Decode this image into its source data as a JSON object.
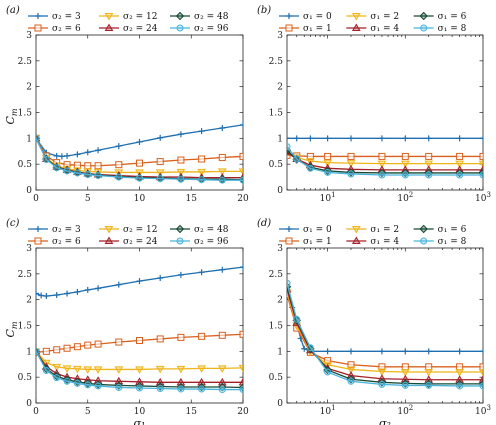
{
  "chart_data": [
    {
      "panel": "(a)",
      "type": "line",
      "xscale": "linear",
      "xlim": [
        0,
        20
      ],
      "ylim": [
        0,
        3
      ],
      "xticks": [
        "0",
        "5",
        "10",
        "15",
        "20"
      ],
      "yticks": [
        "0",
        "0.5",
        "1",
        "1.5",
        "2",
        "2.5",
        "3"
      ],
      "xlabel": "",
      "ylabel": "C_m",
      "legend_position": "top",
      "series": [
        {
          "name": "σ₂ = 3",
          "color": "#1f6fb0",
          "marker": "plus",
          "x": [
            0,
            1,
            2,
            2.5,
            3,
            4,
            5,
            6,
            8,
            10,
            12,
            14,
            16,
            18,
            20
          ],
          "y": [
            1.0,
            0.72,
            0.66,
            0.65,
            0.66,
            0.69,
            0.73,
            0.77,
            0.85,
            0.93,
            1.01,
            1.08,
            1.14,
            1.2,
            1.26
          ]
        },
        {
          "name": "σ₂ = 6",
          "color": "#d9601c",
          "marker": "square",
          "x": [
            0,
            1,
            2,
            3,
            4,
            5,
            6,
            8,
            10,
            12,
            14,
            16,
            18,
            20
          ],
          "y": [
            1.0,
            0.66,
            0.53,
            0.49,
            0.48,
            0.47,
            0.47,
            0.49,
            0.52,
            0.55,
            0.58,
            0.6,
            0.63,
            0.65
          ]
        },
        {
          "name": "σ₂ = 12",
          "color": "#efb418",
          "marker": "triangle-down",
          "x": [
            0,
            1,
            2,
            3,
            4,
            5,
            6,
            8,
            10,
            12,
            14,
            16,
            18,
            20
          ],
          "y": [
            1.0,
            0.62,
            0.47,
            0.41,
            0.38,
            0.36,
            0.35,
            0.34,
            0.34,
            0.34,
            0.35,
            0.35,
            0.36,
            0.36
          ]
        },
        {
          "name": "σ₂ = 24",
          "color": "#a51e28",
          "marker": "triangle-up",
          "x": [
            0,
            1,
            2,
            3,
            4,
            5,
            6,
            8,
            10,
            12,
            14,
            16,
            18,
            20
          ],
          "y": [
            1.0,
            0.6,
            0.45,
            0.39,
            0.35,
            0.32,
            0.3,
            0.28,
            0.26,
            0.25,
            0.25,
            0.24,
            0.24,
            0.24
          ]
        },
        {
          "name": "σ₂ = 48",
          "color": "#174a34",
          "marker": "diamond",
          "x": [
            0,
            1,
            2,
            3,
            4,
            5,
            6,
            8,
            10,
            12,
            14,
            16,
            18,
            20
          ],
          "y": [
            1.0,
            0.6,
            0.44,
            0.38,
            0.34,
            0.31,
            0.29,
            0.26,
            0.24,
            0.23,
            0.22,
            0.21,
            0.21,
            0.2
          ]
        },
        {
          "name": "σ₂ = 96",
          "color": "#48b3dc",
          "marker": "circle",
          "x": [
            0,
            1,
            2,
            3,
            4,
            5,
            6,
            8,
            10,
            12,
            14,
            16,
            18,
            20
          ],
          "y": [
            1.0,
            0.59,
            0.43,
            0.37,
            0.33,
            0.3,
            0.28,
            0.25,
            0.23,
            0.22,
            0.21,
            0.2,
            0.19,
            0.19
          ]
        }
      ]
    },
    {
      "panel": "(b)",
      "type": "line",
      "xscale": "log",
      "xlim": [
        3,
        1000
      ],
      "ylim": [
        0,
        3
      ],
      "xticks": [
        "10^1",
        "10^2",
        "10^3"
      ],
      "yticks": [
        "0",
        "0.5",
        "1",
        "1.5",
        "2",
        "2.5",
        "3"
      ],
      "xlabel": "",
      "ylabel": "",
      "legend_position": "top",
      "series": [
        {
          "name": "σ₁ = 0",
          "color": "#1f6fb0",
          "marker": "plus",
          "x": [
            3,
            4,
            6,
            10,
            20,
            50,
            100,
            200,
            500,
            1000
          ],
          "y": [
            1.0,
            1.0,
            1.0,
            1.0,
            1.0,
            1.0,
            1.0,
            1.0,
            1.0,
            1.0
          ]
        },
        {
          "name": "σ₁ = 1",
          "color": "#d9601c",
          "marker": "square",
          "x": [
            3,
            4,
            6,
            10,
            20,
            50,
            100,
            200,
            500,
            1000
          ],
          "y": [
            0.67,
            0.66,
            0.65,
            0.65,
            0.65,
            0.65,
            0.65,
            0.65,
            0.65,
            0.65
          ]
        },
        {
          "name": "σ₁ = 2",
          "color": "#efb418",
          "marker": "triangle-down",
          "x": [
            3,
            4,
            6,
            10,
            20,
            50,
            100,
            200,
            500,
            1000
          ],
          "y": [
            0.7,
            0.63,
            0.56,
            0.53,
            0.52,
            0.51,
            0.51,
            0.51,
            0.51,
            0.51
          ]
        },
        {
          "name": "σ₁ = 4",
          "color": "#a51e28",
          "marker": "triangle-up",
          "x": [
            3,
            4,
            6,
            10,
            20,
            50,
            100,
            200,
            500,
            1000
          ],
          "y": [
            0.73,
            0.6,
            0.48,
            0.42,
            0.4,
            0.39,
            0.39,
            0.39,
            0.39,
            0.39
          ]
        },
        {
          "name": "σ₁ = 6",
          "color": "#174a34",
          "marker": "diamond",
          "x": [
            3,
            4,
            6,
            10,
            20,
            50,
            100,
            200,
            500,
            1000
          ],
          "y": [
            0.77,
            0.59,
            0.44,
            0.37,
            0.34,
            0.33,
            0.33,
            0.33,
            0.33,
            0.33
          ]
        },
        {
          "name": "σ₁ = 8",
          "color": "#48b3dc",
          "marker": "circle",
          "x": [
            3,
            4,
            6,
            10,
            20,
            50,
            100,
            200,
            500,
            1000
          ],
          "y": [
            0.84,
            0.6,
            0.42,
            0.34,
            0.31,
            0.29,
            0.29,
            0.29,
            0.29,
            0.29
          ]
        }
      ]
    },
    {
      "panel": "(c)",
      "type": "line",
      "xscale": "linear",
      "xlim": [
        0,
        20
      ],
      "ylim": [
        0,
        3
      ],
      "xticks": [
        "0",
        "5",
        "10",
        "15",
        "20"
      ],
      "yticks": [
        "0",
        "0.5",
        "1",
        "1.5",
        "2",
        "2.5",
        "3"
      ],
      "xlabel": "σ₁",
      "ylabel": "C_m",
      "legend_position": "top",
      "series": [
        {
          "name": "σ₂ = 3",
          "color": "#1f6fb0",
          "marker": "plus",
          "x": [
            0,
            0.5,
            1,
            2,
            3,
            4,
            5,
            6,
            8,
            10,
            12,
            14,
            16,
            18,
            20
          ],
          "y": [
            2.12,
            2.08,
            2.07,
            2.09,
            2.12,
            2.15,
            2.19,
            2.22,
            2.29,
            2.36,
            2.42,
            2.48,
            2.53,
            2.58,
            2.63
          ]
        },
        {
          "name": "σ₂ = 6",
          "color": "#d9601c",
          "marker": "square",
          "x": [
            0,
            1,
            2,
            3,
            4,
            5,
            6,
            8,
            10,
            12,
            14,
            16,
            18,
            20
          ],
          "y": [
            0.98,
            1.0,
            1.03,
            1.06,
            1.09,
            1.12,
            1.14,
            1.18,
            1.21,
            1.24,
            1.27,
            1.29,
            1.31,
            1.33
          ]
        },
        {
          "name": "σ₂ = 12",
          "color": "#efb418",
          "marker": "triangle-down",
          "x": [
            0,
            1,
            2,
            3,
            4,
            5,
            6,
            8,
            10,
            12,
            14,
            16,
            18,
            20
          ],
          "y": [
            1.0,
            0.78,
            0.7,
            0.67,
            0.66,
            0.65,
            0.65,
            0.65,
            0.65,
            0.66,
            0.66,
            0.67,
            0.67,
            0.68
          ]
        },
        {
          "name": "σ₂ = 24",
          "color": "#a51e28",
          "marker": "triangle-up",
          "x": [
            0,
            1,
            2,
            3,
            4,
            5,
            6,
            8,
            10,
            12,
            14,
            16,
            18,
            20
          ],
          "y": [
            1.0,
            0.7,
            0.57,
            0.5,
            0.47,
            0.45,
            0.43,
            0.42,
            0.41,
            0.4,
            0.4,
            0.4,
            0.4,
            0.4
          ]
        },
        {
          "name": "σ₂ = 48",
          "color": "#174a34",
          "marker": "diamond",
          "x": [
            0,
            1,
            2,
            3,
            4,
            5,
            6,
            8,
            10,
            12,
            14,
            16,
            18,
            20
          ],
          "y": [
            1.0,
            0.66,
            0.52,
            0.45,
            0.41,
            0.38,
            0.36,
            0.34,
            0.33,
            0.32,
            0.31,
            0.31,
            0.31,
            0.3
          ]
        },
        {
          "name": "σ₂ = 96",
          "color": "#48b3dc",
          "marker": "circle",
          "x": [
            0,
            1,
            2,
            3,
            4,
            5,
            6,
            8,
            10,
            12,
            14,
            16,
            18,
            20
          ],
          "y": [
            1.0,
            0.63,
            0.49,
            0.42,
            0.38,
            0.35,
            0.33,
            0.3,
            0.29,
            0.28,
            0.27,
            0.27,
            0.26,
            0.26
          ]
        }
      ]
    },
    {
      "panel": "(d)",
      "type": "line",
      "xscale": "log",
      "xlim": [
        3,
        1000
      ],
      "ylim": [
        0,
        3
      ],
      "xticks": [
        "10^1",
        "10^2",
        "10^3"
      ],
      "yticks": [
        "0",
        "0.5",
        "1",
        "1.5",
        "2",
        "2.5",
        "3"
      ],
      "xlabel": "σ₂",
      "ylabel": "",
      "legend_position": "top",
      "series": [
        {
          "name": "σ₁ = 0",
          "color": "#1f6fb0",
          "marker": "plus",
          "x": [
            3,
            3.5,
            4,
            4.5,
            5,
            6,
            10,
            20,
            50,
            100,
            200,
            500,
            1000
          ],
          "y": [
            2.12,
            1.85,
            1.55,
            1.25,
            1.05,
            1.0,
            1.0,
            1.0,
            1.0,
            1.0,
            1.0,
            1.0,
            1.0
          ]
        },
        {
          "name": "σ₁ = 1",
          "color": "#d9601c",
          "marker": "square",
          "x": [
            3,
            4,
            6,
            10,
            20,
            50,
            100,
            200,
            500,
            1000
          ],
          "y": [
            2.1,
            1.45,
            0.98,
            0.82,
            0.74,
            0.7,
            0.7,
            0.7,
            0.7,
            0.7
          ]
        },
        {
          "name": "σ₁ = 2",
          "color": "#efb418",
          "marker": "triangle-down",
          "x": [
            3,
            4,
            6,
            10,
            20,
            50,
            100,
            200,
            500,
            1000
          ],
          "y": [
            2.15,
            1.5,
            1.0,
            0.74,
            0.65,
            0.61,
            0.6,
            0.6,
            0.6,
            0.6
          ]
        },
        {
          "name": "σ₁ = 4",
          "color": "#a51e28",
          "marker": "triangle-up",
          "x": [
            3,
            4,
            6,
            10,
            20,
            50,
            100,
            200,
            500,
            1000
          ],
          "y": [
            2.2,
            1.55,
            1.02,
            0.67,
            0.53,
            0.47,
            0.46,
            0.45,
            0.45,
            0.45
          ]
        },
        {
          "name": "σ₁ = 6",
          "color": "#174a34",
          "marker": "diamond",
          "x": [
            3,
            4,
            6,
            10,
            20,
            50,
            100,
            200,
            500,
            1000
          ],
          "y": [
            2.25,
            1.6,
            1.05,
            0.64,
            0.46,
            0.4,
            0.38,
            0.37,
            0.37,
            0.37
          ]
        },
        {
          "name": "σ₁ = 8",
          "color": "#48b3dc",
          "marker": "circle",
          "x": [
            3,
            4,
            6,
            10,
            20,
            50,
            100,
            200,
            500,
            1000
          ],
          "y": [
            2.32,
            1.62,
            1.07,
            0.6,
            0.42,
            0.36,
            0.34,
            0.34,
            0.33,
            0.33
          ]
        }
      ]
    }
  ]
}
